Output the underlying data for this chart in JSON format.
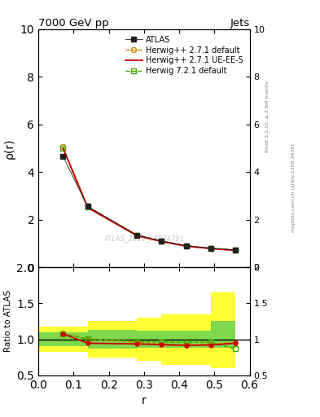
{
  "title": "7000 GeV pp",
  "title_right": "Jets",
  "ylabel_main": "ρ(r)",
  "ylabel_ratio": "Ratio to ATLAS",
  "xlabel": "r",
  "watermark": "ATLAS_2011_S8924791",
  "rivet_label": "Rivet 3.1.10, ≥ 2.9M events",
  "mcplots_label": "mcplots.cern.ch [arXiv:1306.3436]",
  "x_data": [
    0.07,
    0.14,
    0.28,
    0.35,
    0.42,
    0.49,
    0.56
  ],
  "atlas_y": [
    4.65,
    2.55,
    1.35,
    1.1,
    0.9,
    0.8,
    0.72
  ],
  "herwig271_default_y": [
    5.05,
    2.55,
    1.35,
    1.1,
    0.9,
    0.8,
    0.72
  ],
  "herwig271_ueee5_y": [
    5.0,
    2.5,
    1.32,
    1.08,
    0.88,
    0.78,
    0.7
  ],
  "herwig721_default_y": [
    5.0,
    2.52,
    1.33,
    1.09,
    0.89,
    0.79,
    0.71
  ],
  "ratio_herwig271_default": [
    1.085,
    1.0,
    0.96,
    0.93,
    0.92,
    0.935,
    0.955
  ],
  "ratio_herwig271_ueee5": [
    1.075,
    0.945,
    0.935,
    0.925,
    0.915,
    0.92,
    0.945
  ],
  "ratio_herwig721_default": [
    1.075,
    1.005,
    0.975,
    0.96,
    0.955,
    0.96,
    0.865
  ],
  "color_atlas": "#222222",
  "color_herwig271_default": "#cc8800",
  "color_herwig271_ueee5": "#cc0000",
  "color_herwig721_default": "#44aa00",
  "ylim_main": [
    0,
    10
  ],
  "ylim_ratio": [
    0.5,
    2.0
  ],
  "xlim": [
    0.0,
    0.6
  ],
  "yticks_main": [
    0,
    2,
    4,
    6,
    8,
    10
  ],
  "yticks_ratio": [
    0.5,
    1.0,
    1.5,
    2.0
  ]
}
